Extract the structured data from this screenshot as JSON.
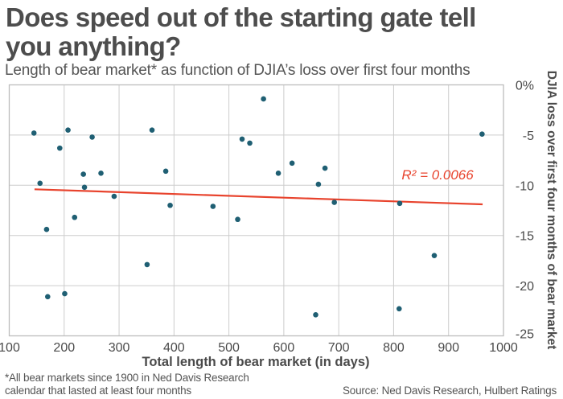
{
  "chart_data": {
    "type": "scatter",
    "title": "Does speed out of the starting gate tell you anything?",
    "subtitle": "Length of bear market* as function of DJIA’s loss over first four months",
    "xlabel": "Total length of bear market (in days)",
    "ylabel": "DJIA loss over first four months of bear market",
    "xlim": [
      100,
      1000
    ],
    "ylim": [
      -25,
      0
    ],
    "x_ticks": [
      100,
      200,
      300,
      400,
      500,
      600,
      700,
      800,
      900,
      1000
    ],
    "x_tick_labels": [
      "100",
      "200",
      "300",
      "400",
      "500",
      "600",
      "700",
      "800",
      "900",
      "1000"
    ],
    "y_ticks": [
      0,
      -5,
      -10,
      -15,
      -20,
      -25
    ],
    "y_tick_labels": [
      "0%",
      "-5",
      "-10",
      "-15",
      "-20",
      "-25"
    ],
    "grid": true,
    "y_axis_side": "right",
    "points": [
      {
        "x": 145,
        "y": -4.8
      },
      {
        "x": 156,
        "y": -9.8
      },
      {
        "x": 168,
        "y": -14.4
      },
      {
        "x": 170,
        "y": -21.1
      },
      {
        "x": 192,
        "y": -6.3
      },
      {
        "x": 201,
        "y": -20.8
      },
      {
        "x": 207,
        "y": -4.5
      },
      {
        "x": 219,
        "y": -13.2
      },
      {
        "x": 235,
        "y": -8.9
      },
      {
        "x": 237,
        "y": -10.2
      },
      {
        "x": 251,
        "y": -5.2
      },
      {
        "x": 267,
        "y": -8.8
      },
      {
        "x": 291,
        "y": -11.1
      },
      {
        "x": 351,
        "y": -17.9
      },
      {
        "x": 360,
        "y": -4.5
      },
      {
        "x": 385,
        "y": -8.6
      },
      {
        "x": 393,
        "y": -12.0
      },
      {
        "x": 471,
        "y": -12.1
      },
      {
        "x": 516,
        "y": -13.4
      },
      {
        "x": 524,
        "y": -5.4
      },
      {
        "x": 538,
        "y": -5.8
      },
      {
        "x": 563,
        "y": -1.4
      },
      {
        "x": 590,
        "y": -8.8
      },
      {
        "x": 615,
        "y": -7.8
      },
      {
        "x": 658,
        "y": -22.9
      },
      {
        "x": 663,
        "y": -9.9
      },
      {
        "x": 675,
        "y": -8.3
      },
      {
        "x": 692,
        "y": -11.7
      },
      {
        "x": 810,
        "y": -22.3
      },
      {
        "x": 811,
        "y": -11.8
      },
      {
        "x": 874,
        "y": -17.0
      },
      {
        "x": 961,
        "y": -4.9
      }
    ],
    "trendline": {
      "x": [
        146,
        962
      ],
      "y": [
        -10.4,
        -11.9
      ],
      "label": "R² = 0.0066",
      "label_x": 880,
      "label_y": -9.4
    },
    "colors": {
      "points": "#1f5f73",
      "trendline": "#e8432d",
      "grid": "#cccccc",
      "axis_text": "#4a4a4a"
    }
  },
  "footnote_line1": "*All bear markets since 1900 in Ned Davis Research",
  "footnote_line2": "calendar that lasted at least four months",
  "source": "Source: Ned Davis Research, Hulbert Ratings"
}
